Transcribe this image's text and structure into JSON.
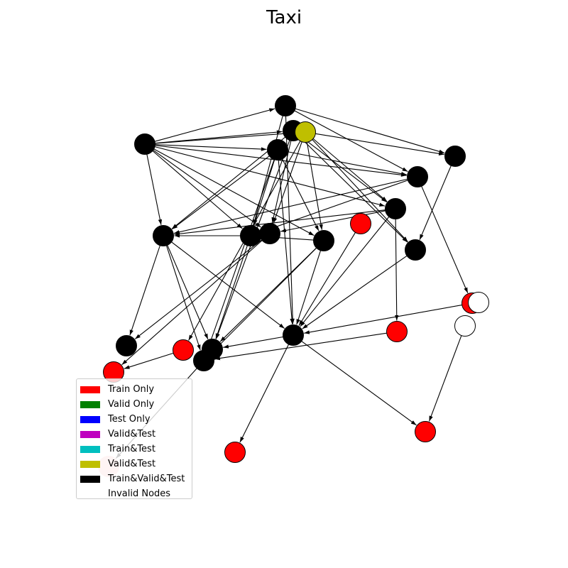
{
  "title": "Taxi",
  "colors": {
    "train": "#ff0000",
    "valid": "#008000",
    "test": "#0000ff",
    "valid_test_m": "#bf00bf",
    "train_test": "#00bfbf",
    "valid_test_y": "#bfbf00",
    "all": "#000000",
    "invalid": "#ffffff",
    "faded": "#f8c8c8"
  },
  "legend": [
    {
      "label": "Train Only",
      "color": "#ff0000"
    },
    {
      "label": "Valid Only",
      "color": "#008000"
    },
    {
      "label": "Test Only",
      "color": "#0000ff"
    },
    {
      "label": "Valid&Test",
      "color": "#bf00bf"
    },
    {
      "label": "Train&Test",
      "color": "#00bfbf"
    },
    {
      "label": "Valid&Test",
      "color": "#bfbf00"
    },
    {
      "label": "Train&Valid&Test",
      "color": "#000000"
    },
    {
      "label": "Invalid Nodes",
      "color": "#ffffff"
    }
  ]
}
